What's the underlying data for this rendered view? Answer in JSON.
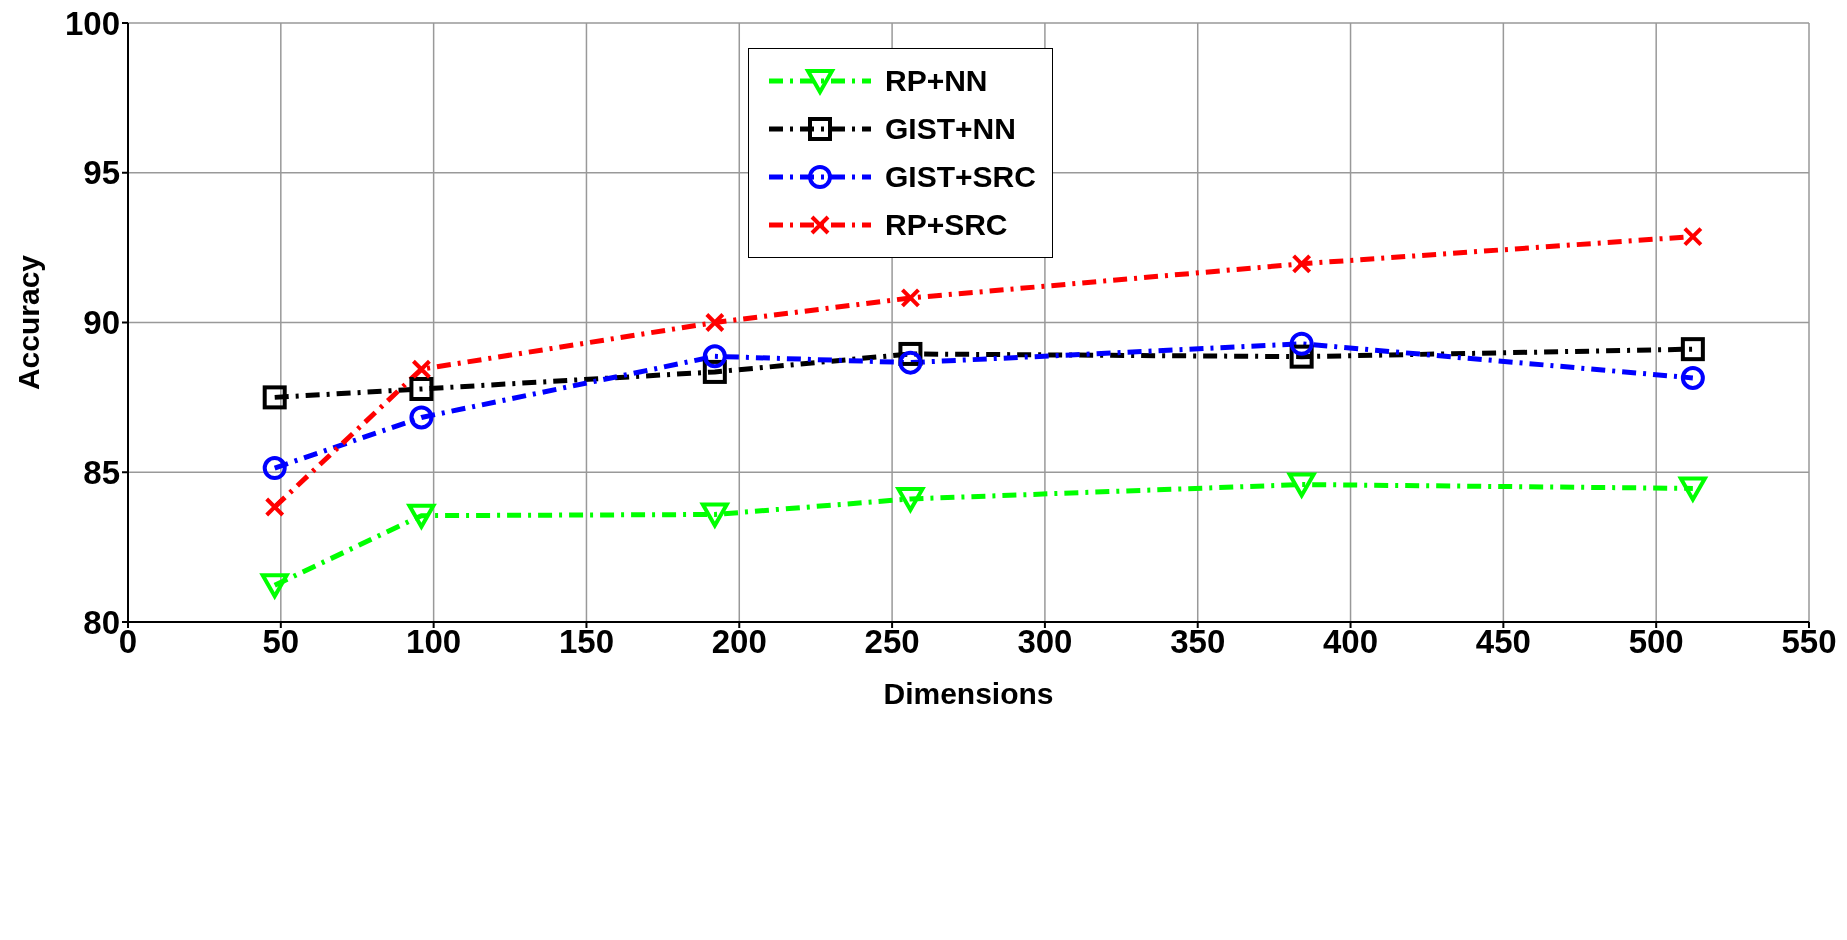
{
  "chart_data": {
    "type": "line",
    "xlabel": "Dimensions",
    "ylabel": "Accuracy",
    "x": [
      48,
      96,
      192,
      256,
      384,
      512
    ],
    "series": [
      {
        "name": "RP+NN",
        "color": "#00ff00",
        "marker": "triangle",
        "values": [
          81.23,
          83.55,
          83.59,
          84.11,
          84.59,
          84.46
        ]
      },
      {
        "name": "GIST+NN",
        "color": "#000000",
        "marker": "square",
        "values": [
          87.5,
          87.78,
          88.35,
          88.95,
          88.86,
          89.11
        ]
      },
      {
        "name": "GIST+SRC",
        "color": "#0000ff",
        "marker": "circle",
        "values": [
          85.14,
          86.83,
          88.87,
          88.66,
          89.29,
          88.15
        ]
      },
      {
        "name": "RP+SRC",
        "color": "#ff0000",
        "marker": "cross",
        "values": [
          83.84,
          88.44,
          90.0,
          90.82,
          91.96,
          92.87
        ]
      }
    ],
    "xlim": [
      0,
      550
    ],
    "xticks": [
      0,
      50,
      100,
      150,
      200,
      250,
      300,
      350,
      400,
      450,
      500,
      550
    ],
    "ylim": [
      80,
      100
    ],
    "yticks": [
      80,
      85,
      90,
      95,
      100
    ],
    "grid": true,
    "legend": "top",
    "line_style": "dashed"
  }
}
